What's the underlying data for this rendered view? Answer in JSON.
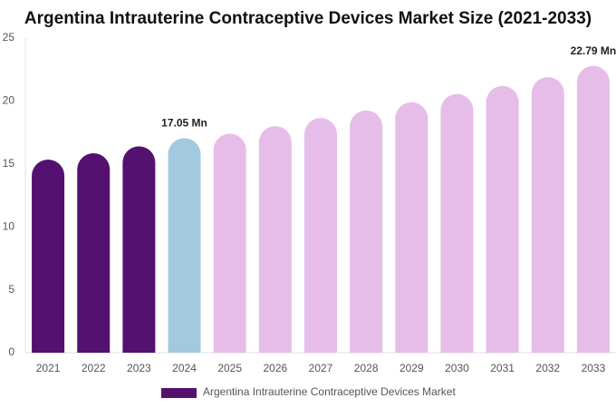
{
  "chart_data": {
    "type": "bar",
    "title": "Argentina Intrauterine Contraceptive Devices Market Size (2021-2033)",
    "categories": [
      "2021",
      "2022",
      "2023",
      "2024",
      "2025",
      "2026",
      "2027",
      "2028",
      "2029",
      "2030",
      "2031",
      "2032",
      "2033"
    ],
    "series": [
      {
        "name": "Argentina Intrauterine Contraceptive Devices Market",
        "color": "#541170",
        "colors": [
          "#541170",
          "#541170",
          "#541170",
          "#a3c9de",
          "#e6bde9",
          "#e6bde9",
          "#e6bde9",
          "#e6bde9",
          "#e6bde9",
          "#e6bde9",
          "#e6bde9",
          "#e6bde9",
          "#e6bde9"
        ],
        "values": [
          15.35,
          15.85,
          16.4,
          17.05,
          17.4,
          18.0,
          18.65,
          19.25,
          19.9,
          20.55,
          21.2,
          21.9,
          22.79
        ],
        "value_labels": [
          null,
          null,
          null,
          "17.05 Mn",
          null,
          null,
          null,
          null,
          null,
          null,
          null,
          null,
          "22.79 Mn"
        ]
      }
    ],
    "ylim": [
      0,
      25
    ],
    "yticks": [
      0,
      5,
      10,
      15,
      20,
      25
    ],
    "grid": false,
    "legend": "bottom"
  }
}
